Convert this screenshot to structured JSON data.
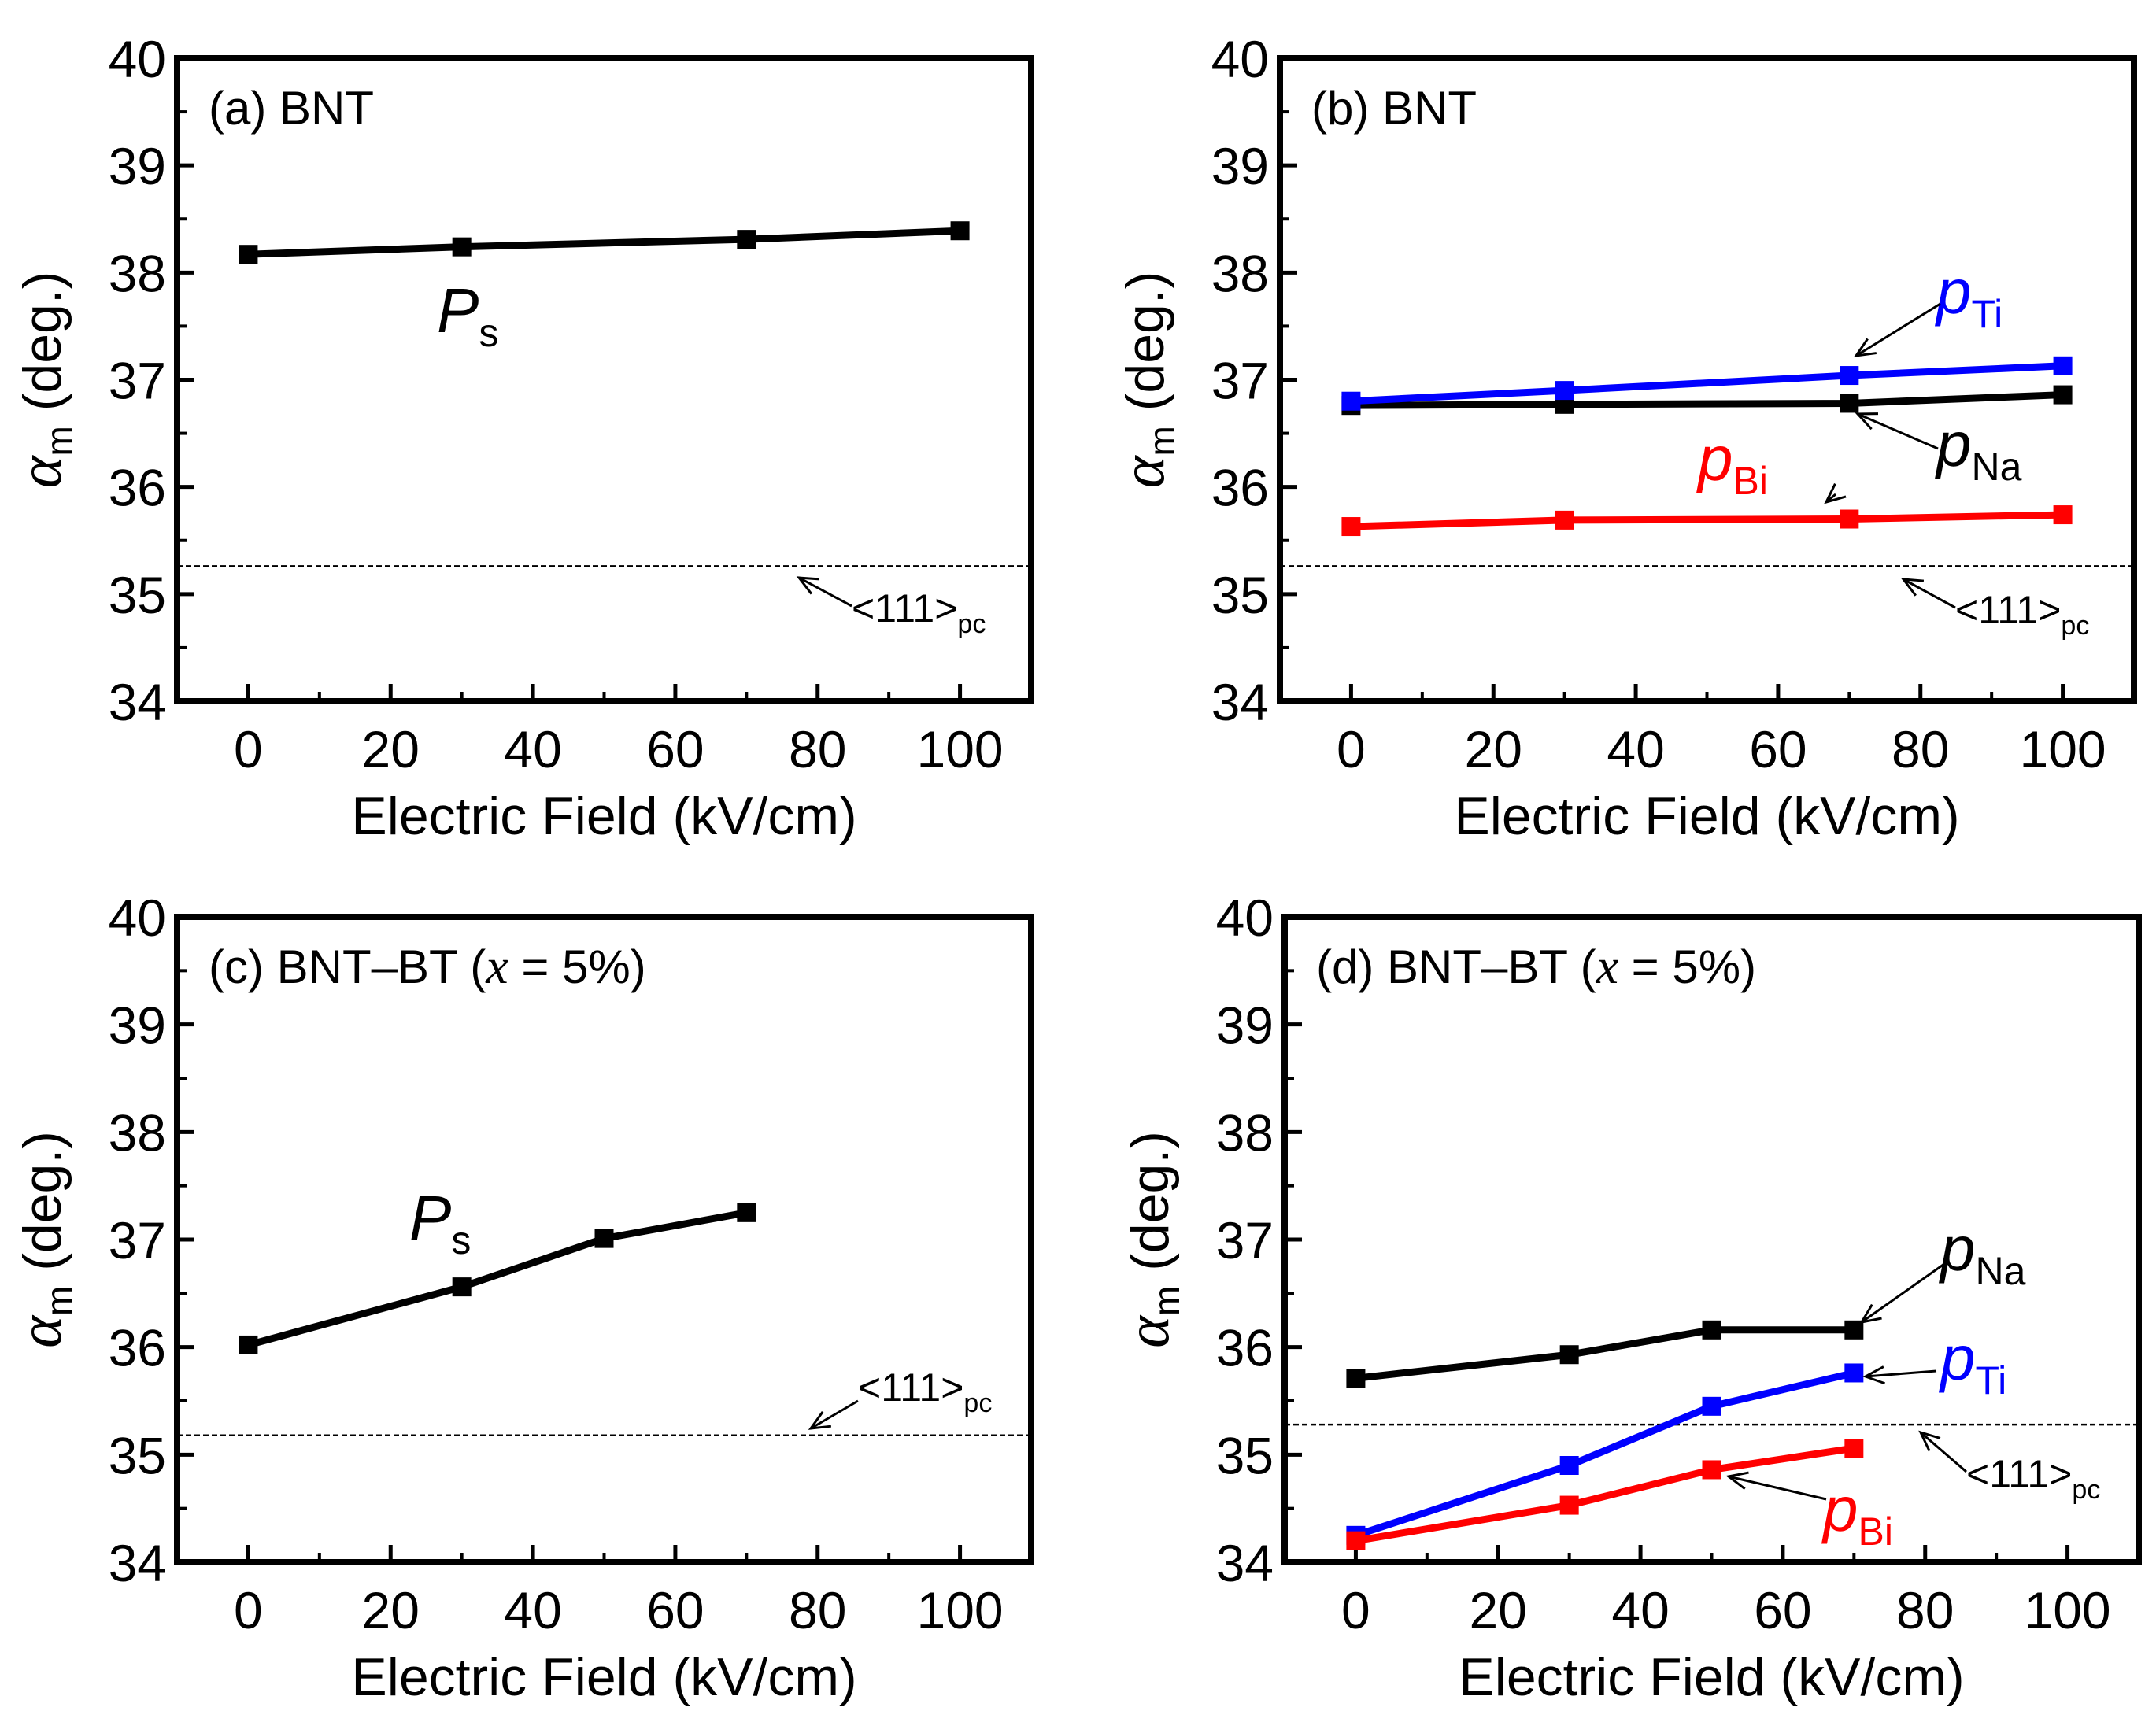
{
  "colors": {
    "black": "#000000",
    "blue": "#0000ff",
    "red": "#ff0000"
  },
  "chart_data": [
    {
      "type": "line",
      "panel": "a",
      "title": "(a) BNT",
      "xlabel": "Electric Field (kV/cm)",
      "ylabel_symbol": "α",
      "ylabel_subscript": "m",
      "ylabel_unit": "(deg.)",
      "xlim": [
        -10,
        110
      ],
      "ylim": [
        34,
        40
      ],
      "xticks": [
        0,
        20,
        40,
        60,
        80,
        100
      ],
      "yticks": [
        34,
        35,
        36,
        37,
        38,
        39,
        40
      ],
      "xtick_labels": [
        "0",
        "20",
        "40",
        "60",
        "80",
        "100"
      ],
      "ytick_labels": [
        "34",
        "35",
        "36",
        "37",
        "38",
        "39",
        "40"
      ],
      "reference_line": {
        "value": 35.26,
        "label": "<111>",
        "sub": "pc"
      },
      "series": [
        {
          "name": "Ps",
          "label_main": "P",
          "label_sub": "s",
          "color": "#000000",
          "x": [
            0,
            30,
            70,
            100
          ],
          "y": [
            38.17,
            38.24,
            38.31,
            38.39
          ]
        }
      ]
    },
    {
      "type": "line",
      "panel": "b",
      "title": "(b) BNT",
      "xlabel": "Electric Field (kV/cm)",
      "ylabel_symbol": "α",
      "ylabel_subscript": "m",
      "ylabel_unit": "(deg.)",
      "xlim": [
        -10,
        110
      ],
      "ylim": [
        34,
        40
      ],
      "xticks": [
        0,
        20,
        40,
        60,
        80,
        100
      ],
      "yticks": [
        34,
        35,
        36,
        37,
        38,
        39,
        40
      ],
      "xtick_labels": [
        "0",
        "20",
        "40",
        "60",
        "80",
        "100"
      ],
      "ytick_labels": [
        "34",
        "35",
        "36",
        "37",
        "38",
        "39",
        "40"
      ],
      "reference_line": {
        "value": 35.26,
        "label": "<111>",
        "sub": "pc"
      },
      "series": [
        {
          "name": "pNa",
          "label_main": "p",
          "label_sub": "Na",
          "color": "#000000",
          "x": [
            0,
            30,
            70,
            100
          ],
          "y": [
            36.76,
            36.77,
            36.78,
            36.86
          ]
        },
        {
          "name": "pTi",
          "label_main": "p",
          "label_sub": "Ti",
          "color": "#0000ff",
          "x": [
            0,
            30,
            70,
            100
          ],
          "y": [
            36.8,
            36.9,
            37.04,
            37.13
          ]
        },
        {
          "name": "pBi",
          "label_main": "p",
          "label_sub": "Bi",
          "color": "#ff0000",
          "x": [
            0,
            30,
            70,
            100
          ],
          "y": [
            35.63,
            35.69,
            35.7,
            35.74
          ]
        }
      ]
    },
    {
      "type": "line",
      "panel": "c",
      "title": "(c) BNT–BT (",
      "title_var": "x",
      "title_tail": " = 5%)",
      "xlabel": "Electric Field (kV/cm)",
      "ylabel_symbol": "α",
      "ylabel_subscript": "m",
      "ylabel_unit": "(deg.)",
      "xlim": [
        -10,
        110
      ],
      "ylim": [
        34,
        40
      ],
      "xticks": [
        0,
        20,
        40,
        60,
        80,
        100
      ],
      "yticks": [
        34,
        35,
        36,
        37,
        38,
        39,
        40
      ],
      "xtick_labels": [
        "0",
        "20",
        "40",
        "60",
        "80",
        "100"
      ],
      "ytick_labels": [
        "34",
        "35",
        "36",
        "37",
        "38",
        "39",
        "40"
      ],
      "reference_line": {
        "value": 35.18,
        "label": "<111>",
        "sub": "pc"
      },
      "series": [
        {
          "name": "Ps",
          "label_main": "P",
          "label_sub": "s",
          "color": "#000000",
          "x": [
            0,
            30,
            50,
            70
          ],
          "y": [
            36.02,
            36.56,
            37.01,
            37.25
          ]
        }
      ]
    },
    {
      "type": "line",
      "panel": "d",
      "title": "(d) BNT–BT (",
      "title_var": "x",
      "title_tail": " = 5%)",
      "xlabel": "Electric Field (kV/cm)",
      "ylabel_symbol": "α",
      "ylabel_subscript": "m",
      "ylabel_unit": "(deg.)",
      "xlim": [
        -10,
        110
      ],
      "ylim": [
        34,
        40
      ],
      "xticks": [
        0,
        20,
        40,
        60,
        80,
        100
      ],
      "yticks": [
        34,
        35,
        36,
        37,
        38,
        39,
        40
      ],
      "xtick_labels": [
        "0",
        "20",
        "40",
        "60",
        "80",
        "100"
      ],
      "ytick_labels": [
        "34",
        "35",
        "36",
        "37",
        "38",
        "39",
        "40"
      ],
      "reference_line": {
        "value": 35.28,
        "label": "<111>",
        "sub": "pc"
      },
      "series": [
        {
          "name": "pNa",
          "label_main": "p",
          "label_sub": "Na",
          "color": "#000000",
          "x": [
            0,
            30,
            50,
            70
          ],
          "y": [
            35.71,
            35.93,
            36.16,
            36.16
          ]
        },
        {
          "name": "pTi",
          "label_main": "p",
          "label_sub": "Ti",
          "color": "#0000ff",
          "x": [
            0,
            30,
            50,
            70
          ],
          "y": [
            34.25,
            34.9,
            35.45,
            35.76
          ]
        },
        {
          "name": "pBi",
          "label_main": "p",
          "label_sub": "Bi",
          "color": "#ff0000",
          "x": [
            0,
            30,
            50,
            70
          ],
          "y": [
            34.2,
            34.53,
            34.86,
            35.06
          ]
        }
      ]
    }
  ]
}
